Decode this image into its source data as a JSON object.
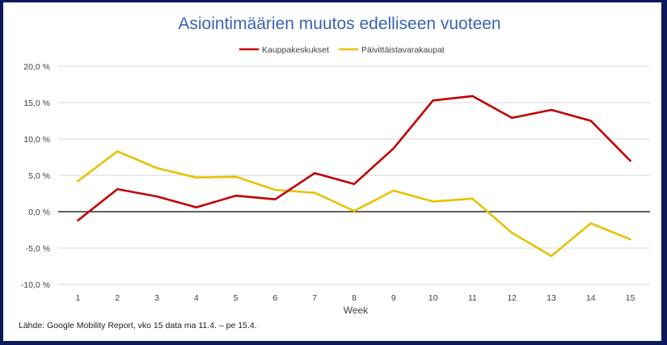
{
  "chart_data": {
    "type": "line",
    "title": "Asiointimäärien muutos edelliseen vuoteen",
    "xlabel": "Week",
    "ylabel": "",
    "x": [
      1,
      2,
      3,
      4,
      5,
      6,
      7,
      8,
      9,
      10,
      11,
      12,
      13,
      14,
      15
    ],
    "ylim": [
      -10,
      20
    ],
    "yticks": [
      20,
      15,
      10,
      5,
      0,
      -5,
      -10
    ],
    "ytick_labels": [
      "20,0 %",
      "15,0 %",
      "10,0 %",
      "5,0 %",
      "0,0 %",
      "-5,0 %",
      "-10,0 %"
    ],
    "grid": true,
    "legend_position": "top-center",
    "series": [
      {
        "name": "Kauppakeskukset",
        "color": "#c00000",
        "values": [
          -1.2,
          3.1,
          2.1,
          0.6,
          2.2,
          1.7,
          5.3,
          3.8,
          8.7,
          15.3,
          15.9,
          12.9,
          14.0,
          12.5,
          7.0
        ]
      },
      {
        "name": "Päivittäistavarakaupat",
        "color": "#e8c100",
        "values": [
          4.2,
          8.3,
          6.0,
          4.7,
          4.8,
          3.0,
          2.6,
          0.1,
          2.9,
          1.4,
          1.8,
          -2.9,
          -6.1,
          -1.6,
          -3.8
        ]
      }
    ]
  },
  "source_note": "Lähde: Google Mobility Report, vko 15 data ma 11.4. – pe 15.4."
}
